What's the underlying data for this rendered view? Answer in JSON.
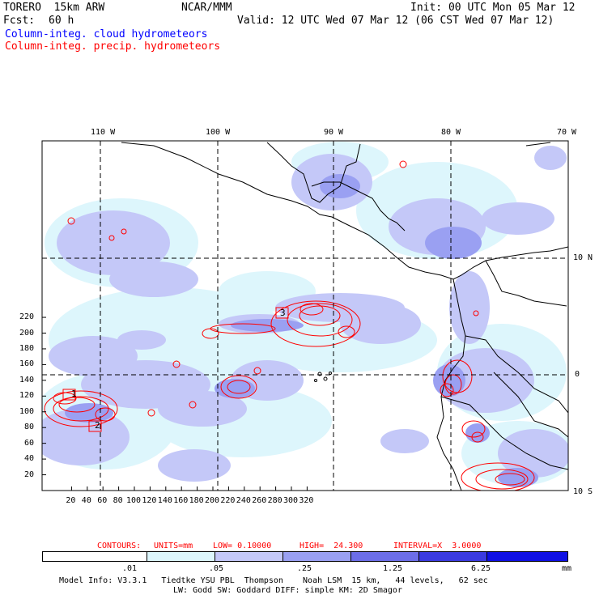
{
  "header": {
    "model": "TORERO  15km ARW",
    "org": "NCAR/MMM",
    "init": "Init: 00 UTC Mon 05 Mar 12",
    "fcst_label": "Fcst:",
    "fcst_value": "60 h",
    "valid": "Valid: 12 UTC Wed 07 Mar 12 (06 CST Wed 07 Mar 12)",
    "field1": "Column-integ. cloud hydrometeors",
    "field2": "Column-integ. precip. hydrometeors",
    "field1_color": "#0000ff",
    "field2_color": "#ff0000"
  },
  "map": {
    "lon_labels": [
      "110 W",
      "100 W",
      "90 W",
      "80 W",
      "70 W"
    ],
    "lat_labels": [
      "10 N",
      "0",
      "10 S"
    ],
    "y_ticks": [
      "20",
      "40",
      "60",
      "80",
      "100",
      "120",
      "140",
      "160",
      "180",
      "200",
      "220"
    ],
    "x_ticks": [
      "20",
      "40",
      "60",
      "80",
      "100",
      "120",
      "140",
      "160",
      "180",
      "200",
      "220",
      "240",
      "260",
      "280",
      "300",
      "320"
    ],
    "station_labels": [
      "1",
      "2",
      "3"
    ]
  },
  "contours": {
    "label": "CONTOURS:",
    "units": "UNITS=mm",
    "low": "LOW= 0.10000",
    "high": "HIGH=  24.300",
    "interval": "INTERVAL=X  3.0000"
  },
  "colorbar": {
    "labels": [
      ".01",
      ".05",
      ".25",
      "1.25",
      "6.25"
    ],
    "unit": "mm",
    "colors": [
      "#ffffff",
      "#ddf6fc",
      "#c4c8f8",
      "#9aa0f2",
      "#6c6ee8",
      "#3a3ae0",
      "#0f10e4"
    ]
  },
  "footer": {
    "line1": "Model Info: V3.3.1   Tiedtke YSU PBL  Thompson    Noah LSM  15 km,   44 levels,   62 sec",
    "line2": "LW: Godd SW: Goddard DIFF: simple KM: 2D Smagor"
  }
}
